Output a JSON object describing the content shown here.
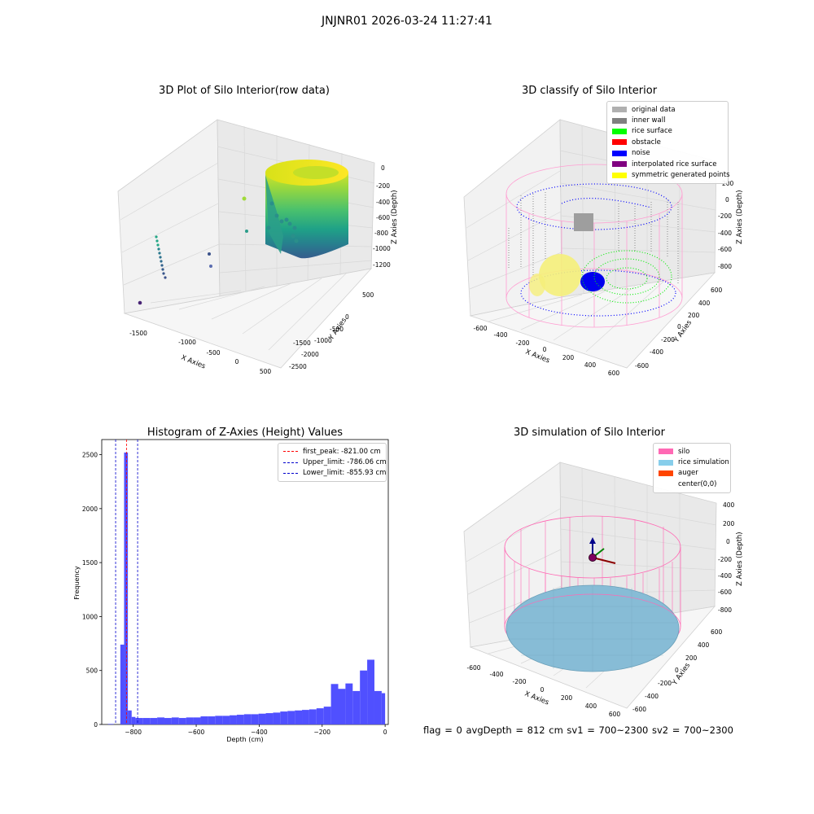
{
  "suptitle": "JNJNR01 2026-03-24 11:27:41",
  "bottom_text": "flag = 0     avgDepth = 812 cm  sv1 = 700~2300  sv2 = 700~2300",
  "chart_data": [
    {
      "type": "scatter",
      "subtype": "3d",
      "title": "3D Plot of Silo Interior(row data)",
      "xlabel": "X Axies",
      "ylabel": "Y Axies",
      "zlabel": "Z Axies (Depth)",
      "x_ticks": [
        "-1500",
        "-1000",
        "-500",
        "0",
        "500"
      ],
      "y_ticks": [
        "500",
        "0",
        "-500",
        "-1000",
        "-1500",
        "-2000",
        "-2500"
      ],
      "z_ticks": [
        "0",
        "-200",
        "-400",
        "-600",
        "-800",
        "-1000",
        "-1200"
      ],
      "colormap": "viridis",
      "grid": true
    },
    {
      "type": "scatter",
      "subtype": "3d",
      "title": "3D classify of Silo Interior",
      "xlabel": "X Axies",
      "ylabel": "Y Axies",
      "zlabel": "Z Axies (Depth)",
      "x_ticks": [
        "-600",
        "-400",
        "-200",
        "0",
        "200",
        "400",
        "600"
      ],
      "y_ticks": [
        "600",
        "400",
        "200",
        "0",
        "-200",
        "-400",
        "-600"
      ],
      "z_ticks": [
        "200",
        "0",
        "-200",
        "-400",
        "-600",
        "-800"
      ],
      "legend": [
        {
          "label": "original data",
          "color": "#b0b0b0"
        },
        {
          "label": "inner wall",
          "color": "#808080"
        },
        {
          "label": "rice surface",
          "color": "#00ff00"
        },
        {
          "label": "obstacle",
          "color": "#ff0000"
        },
        {
          "label": "noise",
          "color": "#0000ff"
        },
        {
          "label": "interpolated rice surface",
          "color": "#800080"
        },
        {
          "label": "symmetric generated points",
          "color": "#ffff00"
        }
      ],
      "legend_position": "top-right",
      "grid": true
    },
    {
      "type": "bar",
      "subtype": "histogram",
      "title": "Histogram of Z-Axies (Height) Values",
      "xlabel": "Depth (cm)",
      "ylabel": "Frequency",
      "x_ticks": [
        "-800",
        "-600",
        "-400",
        "-200",
        "0"
      ],
      "y_ticks": [
        "0",
        "500",
        "1000",
        "1500",
        "2000",
        "2500"
      ],
      "xlim": [
        -900,
        10
      ],
      "ylim": [
        0,
        2640
      ],
      "bar_color": "#5050ff",
      "bins": [
        {
          "x0": -880,
          "x1": -862,
          "count": 5
        },
        {
          "x0": -841,
          "x1": -829,
          "count": 740
        },
        {
          "x0": -829,
          "x1": -817,
          "count": 2520
        },
        {
          "x0": -817,
          "x1": -805,
          "count": 130
        },
        {
          "x0": -805,
          "x1": -793,
          "count": 70
        },
        {
          "x0": -793,
          "x1": -770,
          "count": 60
        },
        {
          "x0": -770,
          "x1": -747,
          "count": 60
        },
        {
          "x0": -747,
          "x1": -724,
          "count": 60
        },
        {
          "x0": -724,
          "x1": -701,
          "count": 65
        },
        {
          "x0": -701,
          "x1": -678,
          "count": 60
        },
        {
          "x0": -678,
          "x1": -655,
          "count": 65
        },
        {
          "x0": -655,
          "x1": -632,
          "count": 60
        },
        {
          "x0": -632,
          "x1": -609,
          "count": 65
        },
        {
          "x0": -609,
          "x1": -586,
          "count": 65
        },
        {
          "x0": -586,
          "x1": -563,
          "count": 75
        },
        {
          "x0": -563,
          "x1": -540,
          "count": 75
        },
        {
          "x0": -540,
          "x1": -517,
          "count": 80
        },
        {
          "x0": -517,
          "x1": -494,
          "count": 80
        },
        {
          "x0": -494,
          "x1": -471,
          "count": 85
        },
        {
          "x0": -471,
          "x1": -448,
          "count": 90
        },
        {
          "x0": -448,
          "x1": -425,
          "count": 95
        },
        {
          "x0": -425,
          "x1": -402,
          "count": 95
        },
        {
          "x0": -402,
          "x1": -379,
          "count": 100
        },
        {
          "x0": -379,
          "x1": -356,
          "count": 105
        },
        {
          "x0": -356,
          "x1": -333,
          "count": 110
        },
        {
          "x0": -333,
          "x1": -310,
          "count": 120
        },
        {
          "x0": -310,
          "x1": -287,
          "count": 125
        },
        {
          "x0": -287,
          "x1": -264,
          "count": 130
        },
        {
          "x0": -264,
          "x1": -241,
          "count": 135
        },
        {
          "x0": -241,
          "x1": -218,
          "count": 140
        },
        {
          "x0": -218,
          "x1": -195,
          "count": 150
        },
        {
          "x0": -195,
          "x1": -172,
          "count": 165
        },
        {
          "x0": -172,
          "x1": -149,
          "count": 375
        },
        {
          "x0": -149,
          "x1": -126,
          "count": 330
        },
        {
          "x0": -126,
          "x1": -103,
          "count": 380
        },
        {
          "x0": -103,
          "x1": -80,
          "count": 310
        },
        {
          "x0": -80,
          "x1": -57,
          "count": 500
        },
        {
          "x0": -57,
          "x1": -34,
          "count": 600
        },
        {
          "x0": -34,
          "x1": -11,
          "count": 310
        },
        {
          "x0": -11,
          "x1": 0,
          "count": 290
        }
      ],
      "vlines": [
        {
          "label": "first_peak: -821.00 cm",
          "x": -821.0,
          "color": "#ff0000"
        },
        {
          "label": "Upper_limit: -786.06 cm",
          "x": -786.06,
          "color": "#0000cc"
        },
        {
          "label": "Lower_limit: -855.93 cm",
          "x": -855.93,
          "color": "#0000cc"
        }
      ],
      "legend_position": "top-right"
    },
    {
      "type": "scatter",
      "subtype": "3d",
      "title": "3D simulation of Silo Interior",
      "xlabel": "X Axies",
      "ylabel": "Y Axies",
      "zlabel": "Z Axies (Depth)",
      "x_ticks": [
        "-600",
        "-400",
        "-200",
        "0",
        "200",
        "400",
        "600"
      ],
      "y_ticks": [
        "600",
        "400",
        "200",
        "0",
        "-200",
        "-400",
        "-600"
      ],
      "z_ticks": [
        "400",
        "200",
        "0",
        "-200",
        "-400",
        "-600",
        "-800"
      ],
      "legend": [
        {
          "label": "silo",
          "color": "#ff69b4"
        },
        {
          "label": "rice simulation",
          "color": "#87ceeb"
        },
        {
          "label": "auger",
          "color": "#ff4500"
        },
        {
          "label": "center(0,0)",
          "color": ""
        }
      ],
      "legend_position": "top-right",
      "grid": true
    }
  ]
}
